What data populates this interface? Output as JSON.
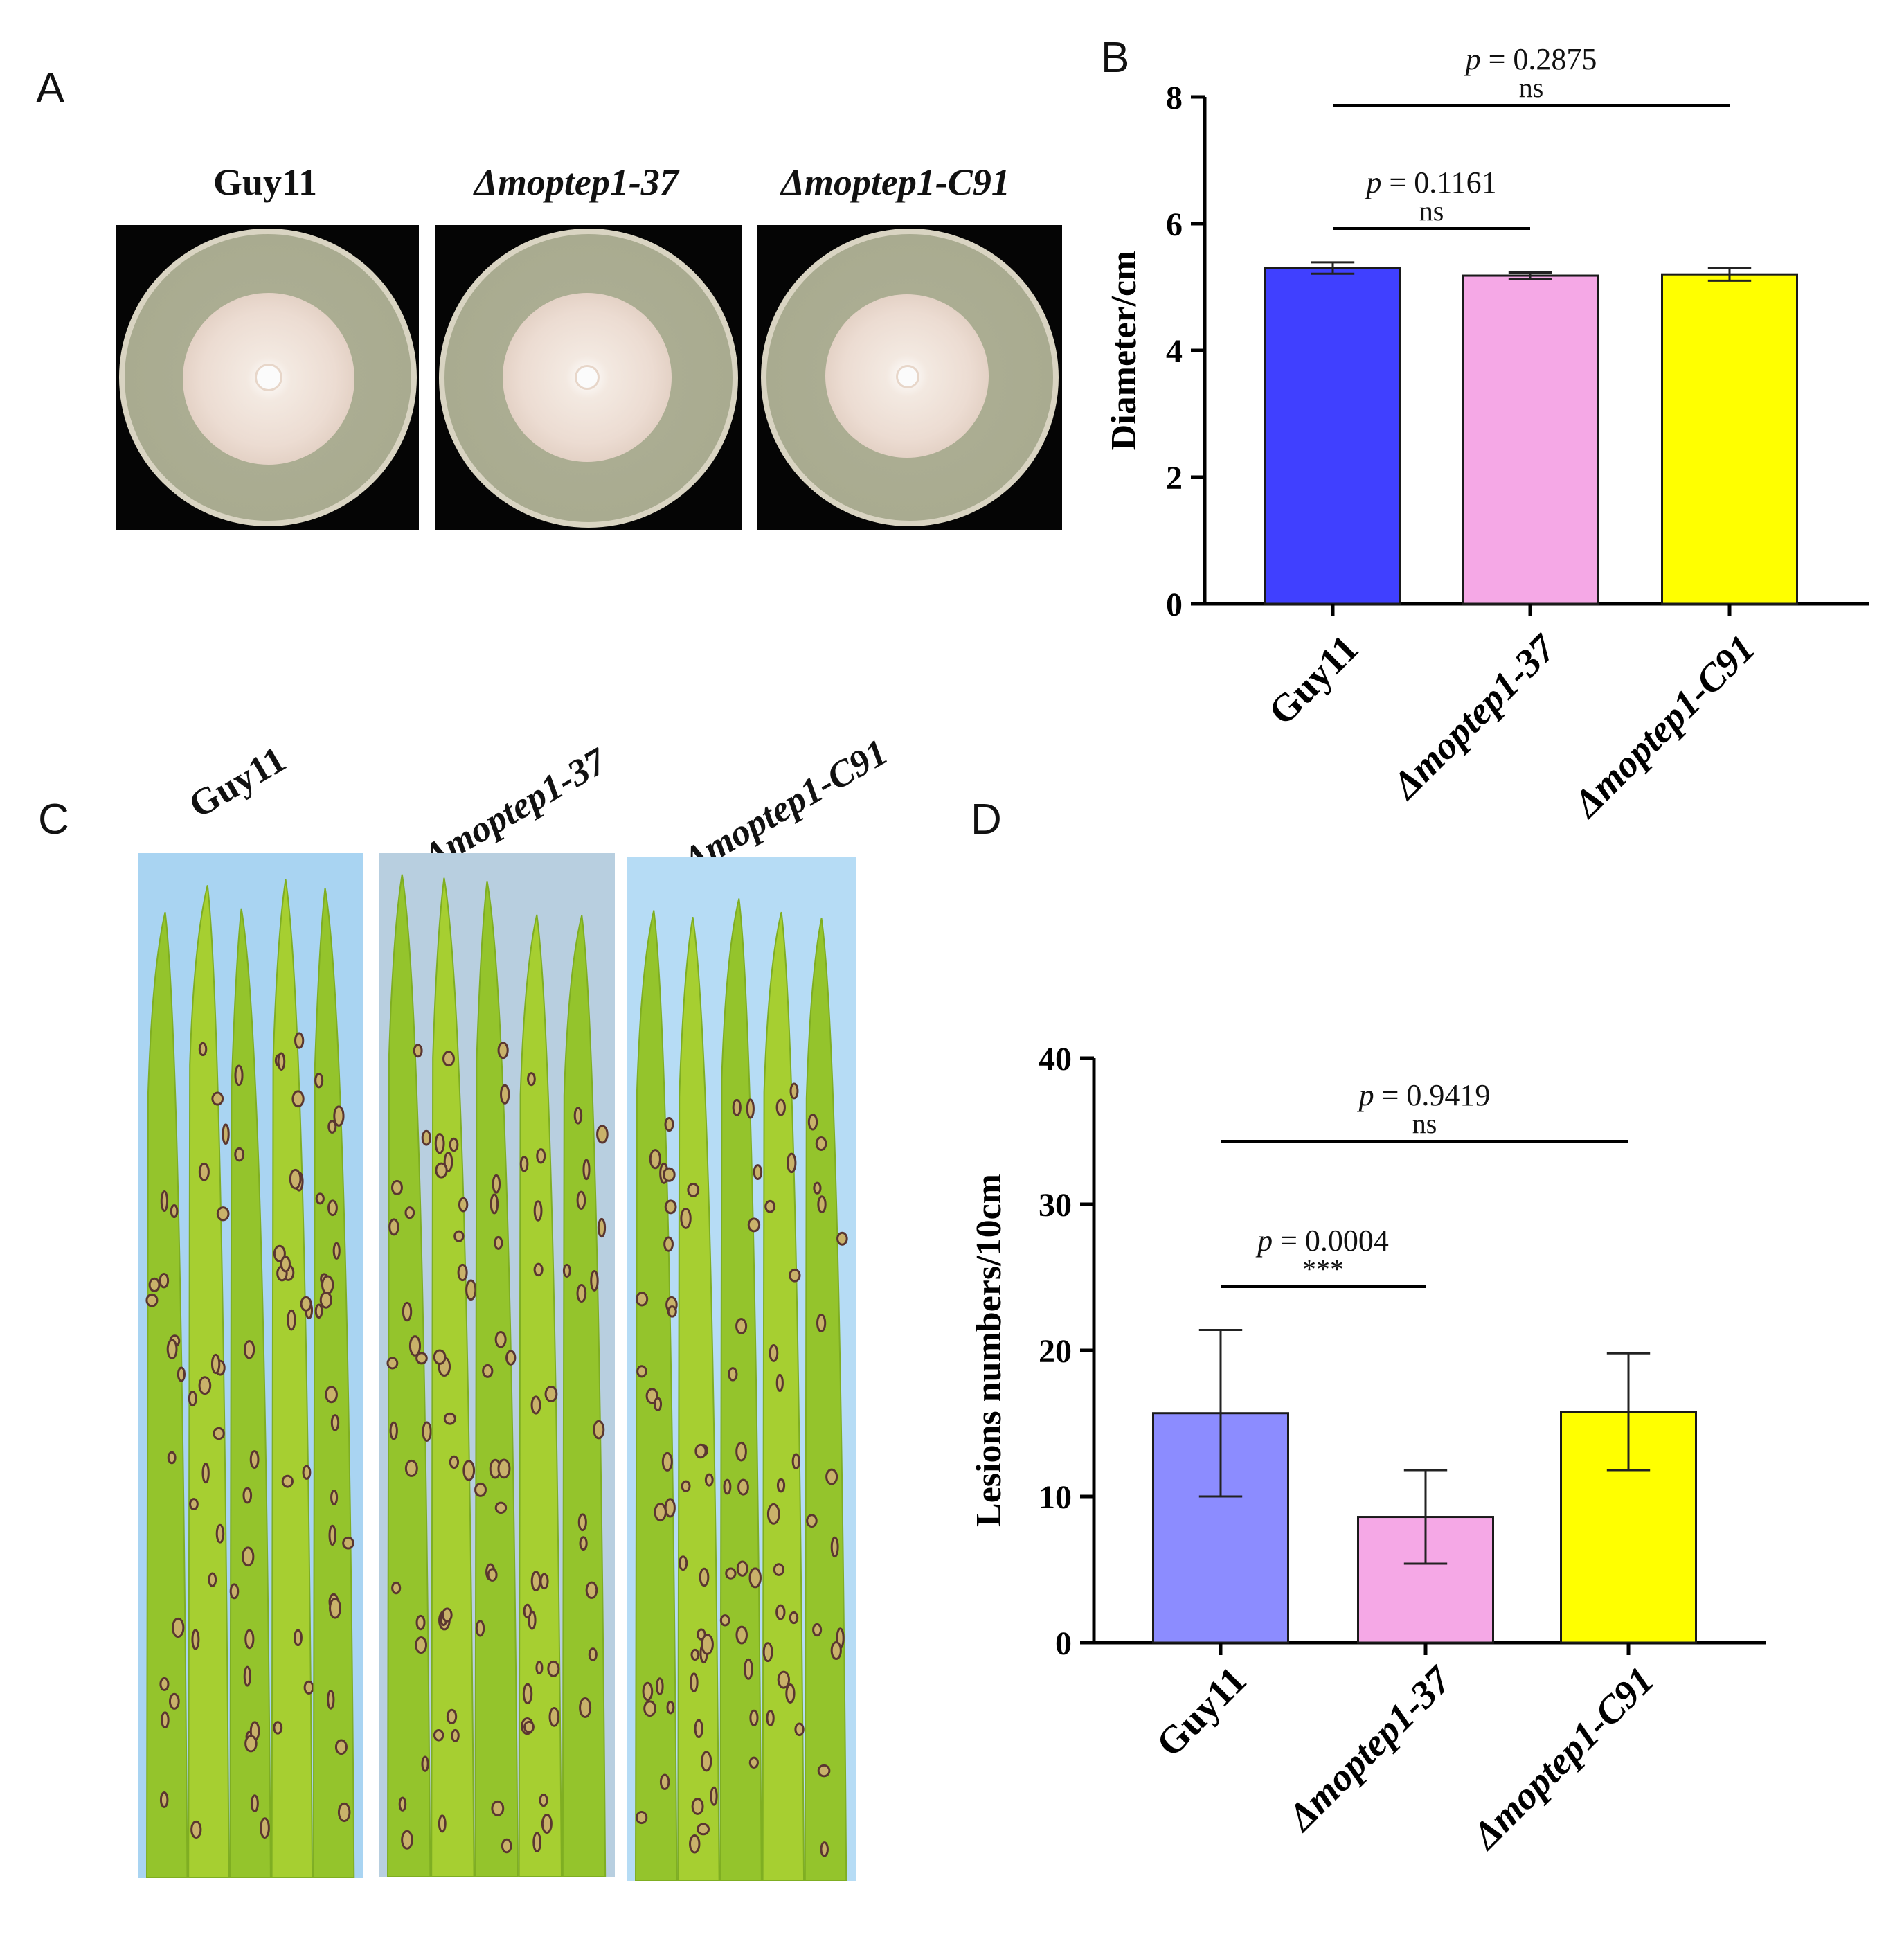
{
  "panels": {
    "A": "A",
    "B": "B",
    "C": "C",
    "D": "D"
  },
  "strains": {
    "wt": "Guy11",
    "mutant": "Δmoptep1-37",
    "complement": "Δmoptep1-C91"
  },
  "colors": {
    "chart_b": [
      "#4040ff",
      "#f5a8e6",
      "#ffff00"
    ],
    "chart_d": [
      "#8c8cff",
      "#f5a8e6",
      "#ffff00"
    ],
    "leaf_bg": [
      "#a9d4f2",
      "#b8cfe0",
      "#b6dcf5"
    ],
    "leaf_green": "#9ccc2f"
  },
  "chart_data": [
    {
      "type": "bar",
      "panel": "B",
      "categories": [
        "Guy11",
        "Δmoptep1-37",
        "Δmoptep1-C91"
      ],
      "values": [
        5.3,
        5.18,
        5.2
      ],
      "errors": [
        0.09,
        0.05,
        0.1
      ],
      "ylabel": "Diameter/cm",
      "ylim": [
        0,
        8
      ],
      "yticks": [
        0,
        2,
        4,
        6,
        8
      ],
      "comparisons": [
        {
          "from": 0,
          "to": 1,
          "p": "0.1161",
          "label": "ns"
        },
        {
          "from": 0,
          "to": 2,
          "p": "0.2875",
          "label": "ns"
        }
      ]
    },
    {
      "type": "bar",
      "panel": "D",
      "categories": [
        "Guy11",
        "Δmoptep1-37",
        "Δmoptep1-C91"
      ],
      "values": [
        15.7,
        8.6,
        15.8
      ],
      "errors": [
        5.7,
        3.2,
        4.0
      ],
      "ylabel": "Lesions numbers/10cm",
      "ylim": [
        0,
        40
      ],
      "yticks": [
        0,
        10,
        20,
        30,
        40
      ],
      "comparisons": [
        {
          "from": 0,
          "to": 1,
          "p": "0.0004",
          "label": "***"
        },
        {
          "from": 0,
          "to": 2,
          "p": "0.9419",
          "label": "ns"
        }
      ]
    }
  ]
}
